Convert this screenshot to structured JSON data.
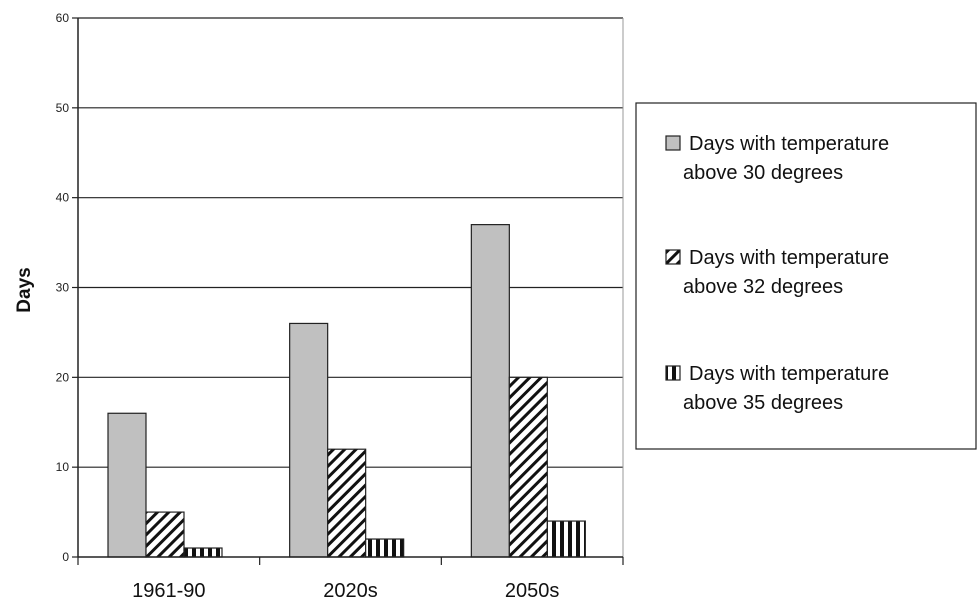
{
  "chart_data": {
    "type": "bar",
    "title": "",
    "xlabel": "",
    "ylabel": "Days",
    "ylim": [
      0,
      60
    ],
    "yticks": [
      0,
      10,
      20,
      30,
      40,
      50,
      60
    ],
    "grid": true,
    "legend_position": "right",
    "categories": [
      "1961-90",
      "2020s",
      "2050s"
    ],
    "series": [
      {
        "name": "Days with temperature above 30 degrees",
        "legend_lines": [
          "Days with temperature",
          "above 30 degrees"
        ],
        "values": [
          16,
          26,
          37
        ],
        "fill": "solid-grey",
        "color": "#c0c0c0"
      },
      {
        "name": "Days with temperature above 32 degrees",
        "legend_lines": [
          "Days with temperature",
          "above 32 degrees"
        ],
        "values": [
          5,
          12,
          20
        ],
        "fill": "diagonal-hatch",
        "color": "#000000"
      },
      {
        "name": "Days with temperature above 35 degrees",
        "legend_lines": [
          "Days with temperature",
          "above 35 degrees"
        ],
        "values": [
          1,
          2,
          4
        ],
        "fill": "vertical-stripes",
        "color": "#000000"
      }
    ]
  }
}
